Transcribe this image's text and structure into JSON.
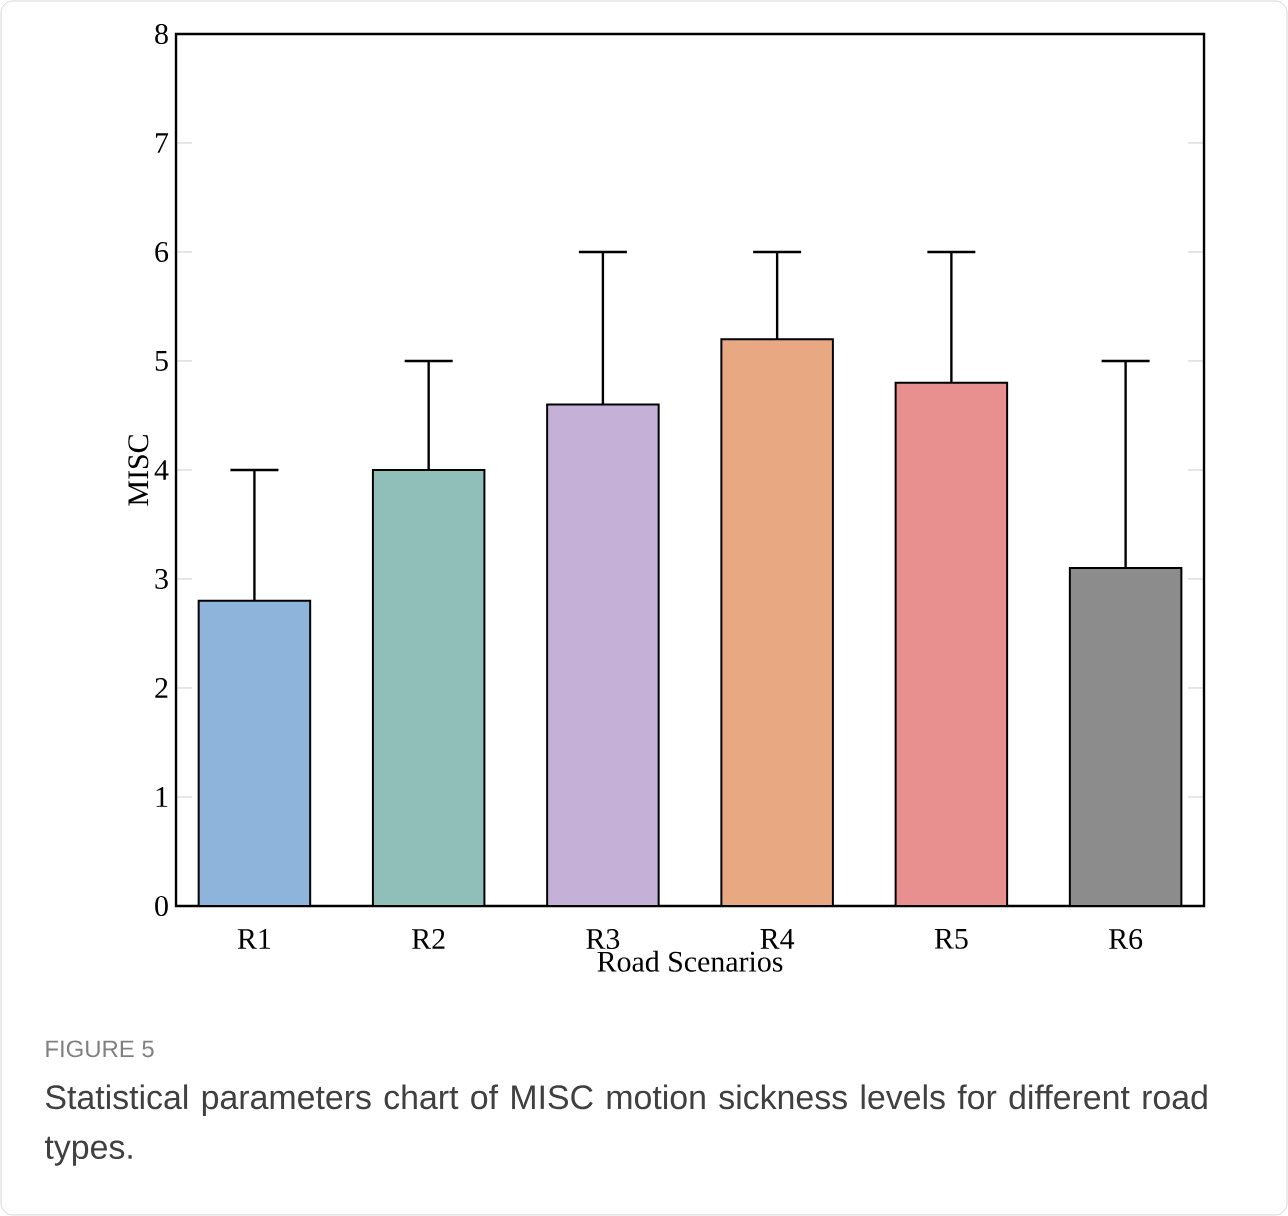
{
  "chart_data": {
    "type": "bar",
    "xlabel": "Road Scenarios",
    "ylabel": "MISC",
    "categories": [
      "R1",
      "R2",
      "R3",
      "R4",
      "R5",
      "R6"
    ],
    "values": [
      2.8,
      4.0,
      4.6,
      5.2,
      4.8,
      3.1
    ],
    "errors": [
      [
        2.8,
        4
      ],
      [
        4.0,
        5
      ],
      [
        4.6,
        6
      ],
      [
        5.2,
        6
      ],
      [
        4.8,
        6
      ],
      [
        3.1,
        5
      ]
    ],
    "colors": [
      "#8eb4dc",
      "#8fbfb8",
      "#c5b0d8",
      "#e8a882",
      "#e89090",
      "#8c8c8c"
    ],
    "ylim": [
      0,
      8
    ],
    "yticks": [
      0,
      1,
      2,
      3,
      4,
      5,
      6,
      7,
      8
    ],
    "annotations": [
      "FIGURE 5",
      "Statistical parameters chart of MISC motion sickness levels for different road types."
    ]
  }
}
